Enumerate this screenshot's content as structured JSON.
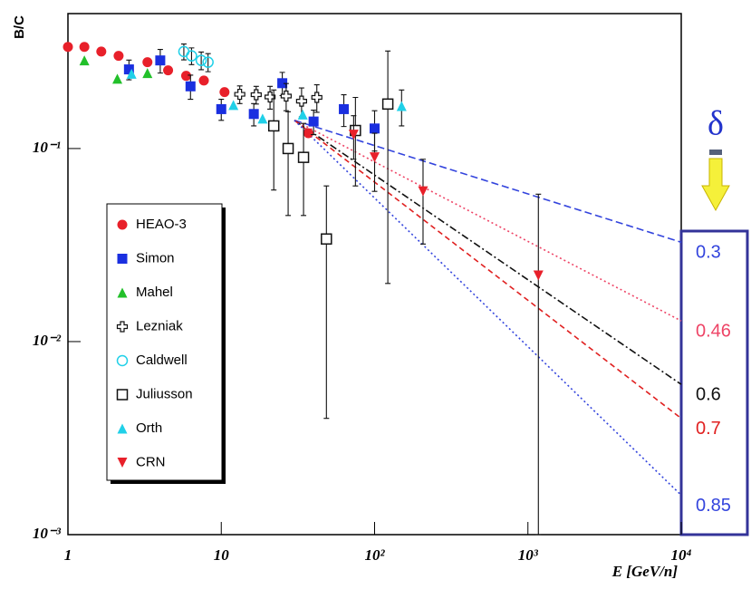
{
  "chart_data": {
    "type": "scatter",
    "ylabel": "B/C",
    "xlabel": "E [GeV/n]",
    "xlog": true,
    "ylog": true,
    "xlim": [
      1,
      10000
    ],
    "ylim": [
      0.001,
      0.5
    ],
    "xticks": [
      1,
      10,
      {
        "value": 100,
        "label": "10²"
      },
      {
        "value": 1000,
        "label": "10³"
      },
      {
        "value": 10000,
        "label": "10⁴"
      }
    ],
    "yticks": [
      {
        "value": 0.001,
        "label": "10⁻³"
      },
      {
        "value": 0.01,
        "label": "10⁻²"
      },
      {
        "value": 0.1,
        "label": "10⁻¹"
      }
    ],
    "legend": "left",
    "series": [
      {
        "name": "HEAO-3",
        "color": "#e8202a",
        "marker": "circle",
        "x": [
          1,
          1.28,
          1.65,
          2.14,
          3.3,
          4.5,
          5.9,
          7.7,
          10.5,
          37
        ],
        "values": [
          0.336,
          0.336,
          0.318,
          0.302,
          0.28,
          0.254,
          0.238,
          0.225,
          0.196,
          0.12
        ]
      },
      {
        "name": "Simon",
        "color": "#1a2fe0",
        "marker": "square",
        "x": [
          2.5,
          4.0,
          6.3,
          10,
          16.3,
          25,
          40,
          63,
          100
        ],
        "values": [
          0.257,
          0.286,
          0.21,
          0.16,
          0.151,
          0.218,
          0.138,
          0.16,
          0.127
        ],
        "yerr": [
          0.03,
          0.04,
          0.03,
          0.02,
          0.02,
          0.03,
          0.02,
          0.03,
          0.03
        ]
      },
      {
        "name": "Mahel",
        "color": "#22c02a",
        "marker": "triangle",
        "x": [
          1.28,
          2.1,
          3.3
        ],
        "values": [
          0.286,
          0.23,
          0.246
        ]
      },
      {
        "name": "Lezniak",
        "color": "#111111",
        "marker": "cross",
        "x": [
          13.2,
          16.9,
          20.8,
          26.5,
          33.4,
          42
        ],
        "values": [
          0.191,
          0.19,
          0.185,
          0.187,
          0.176,
          0.184
        ],
        "yerr": [
          0.02,
          0.02,
          0.025,
          0.03,
          0.03,
          0.03
        ]
      },
      {
        "name": "Caldwell",
        "color": "#20d0e8",
        "marker": "open-circle",
        "x": [
          5.7,
          6.4,
          7.4,
          8.2
        ],
        "values": [
          0.318,
          0.302,
          0.286,
          0.28
        ],
        "yerr": [
          0.03,
          0.03,
          0.03,
          0.03
        ]
      },
      {
        "name": "Juliusson",
        "color": "#111111",
        "marker": "open-square",
        "x": [
          22,
          27.3,
          34.4,
          48.5,
          75,
          122
        ],
        "values": [
          0.131,
          0.1,
          0.09,
          0.034,
          0.124,
          0.17
        ],
        "yerr": [
          0.07,
          0.055,
          0.045,
          0.03,
          0.06,
          0.15
        ]
      },
      {
        "name": "Orth",
        "color": "#20d0e8",
        "marker": "triangle",
        "x": [
          2.6,
          12,
          18.6,
          34,
          150
        ],
        "values": [
          0.244,
          0.168,
          0.143,
          0.15,
          0.166
        ],
        "yerr": [
          null,
          null,
          null,
          null,
          0.035
        ]
      },
      {
        "name": "CRN",
        "color": "#e8202a",
        "marker": "triangle-down",
        "x": [
          73,
          100,
          207,
          1170
        ],
        "values": [
          0.118,
          0.09,
          0.06,
          0.022
        ],
        "yerr": [
          0.03,
          0.03,
          0.028,
          0.036
        ]
      }
    ],
    "lines_title": "δ",
    "lines": [
      {
        "name": "0.3",
        "color": "#3344dd",
        "dash": "8 4",
        "x": [
          30,
          10000
        ],
        "values": [
          0.14,
          0.0327
        ]
      },
      {
        "name": "0.46",
        "color": "#ee4466",
        "dash": "2 3",
        "x": [
          30,
          10000
        ],
        "values": [
          0.14,
          0.0128
        ]
      },
      {
        "name": "0.6",
        "color": "#111111",
        "dash": "8 3 2 3",
        "x": [
          30,
          10000
        ],
        "values": [
          0.14,
          0.006
        ]
      },
      {
        "name": "0.7",
        "color": "#e02020",
        "dash": "6 4",
        "x": [
          30,
          10000
        ],
        "values": [
          0.14,
          0.004
        ]
      },
      {
        "name": "0.85",
        "color": "#3344dd",
        "dash": "2 3",
        "x": [
          30,
          10000
        ],
        "values": [
          0.14,
          0.0016
        ]
      }
    ]
  }
}
